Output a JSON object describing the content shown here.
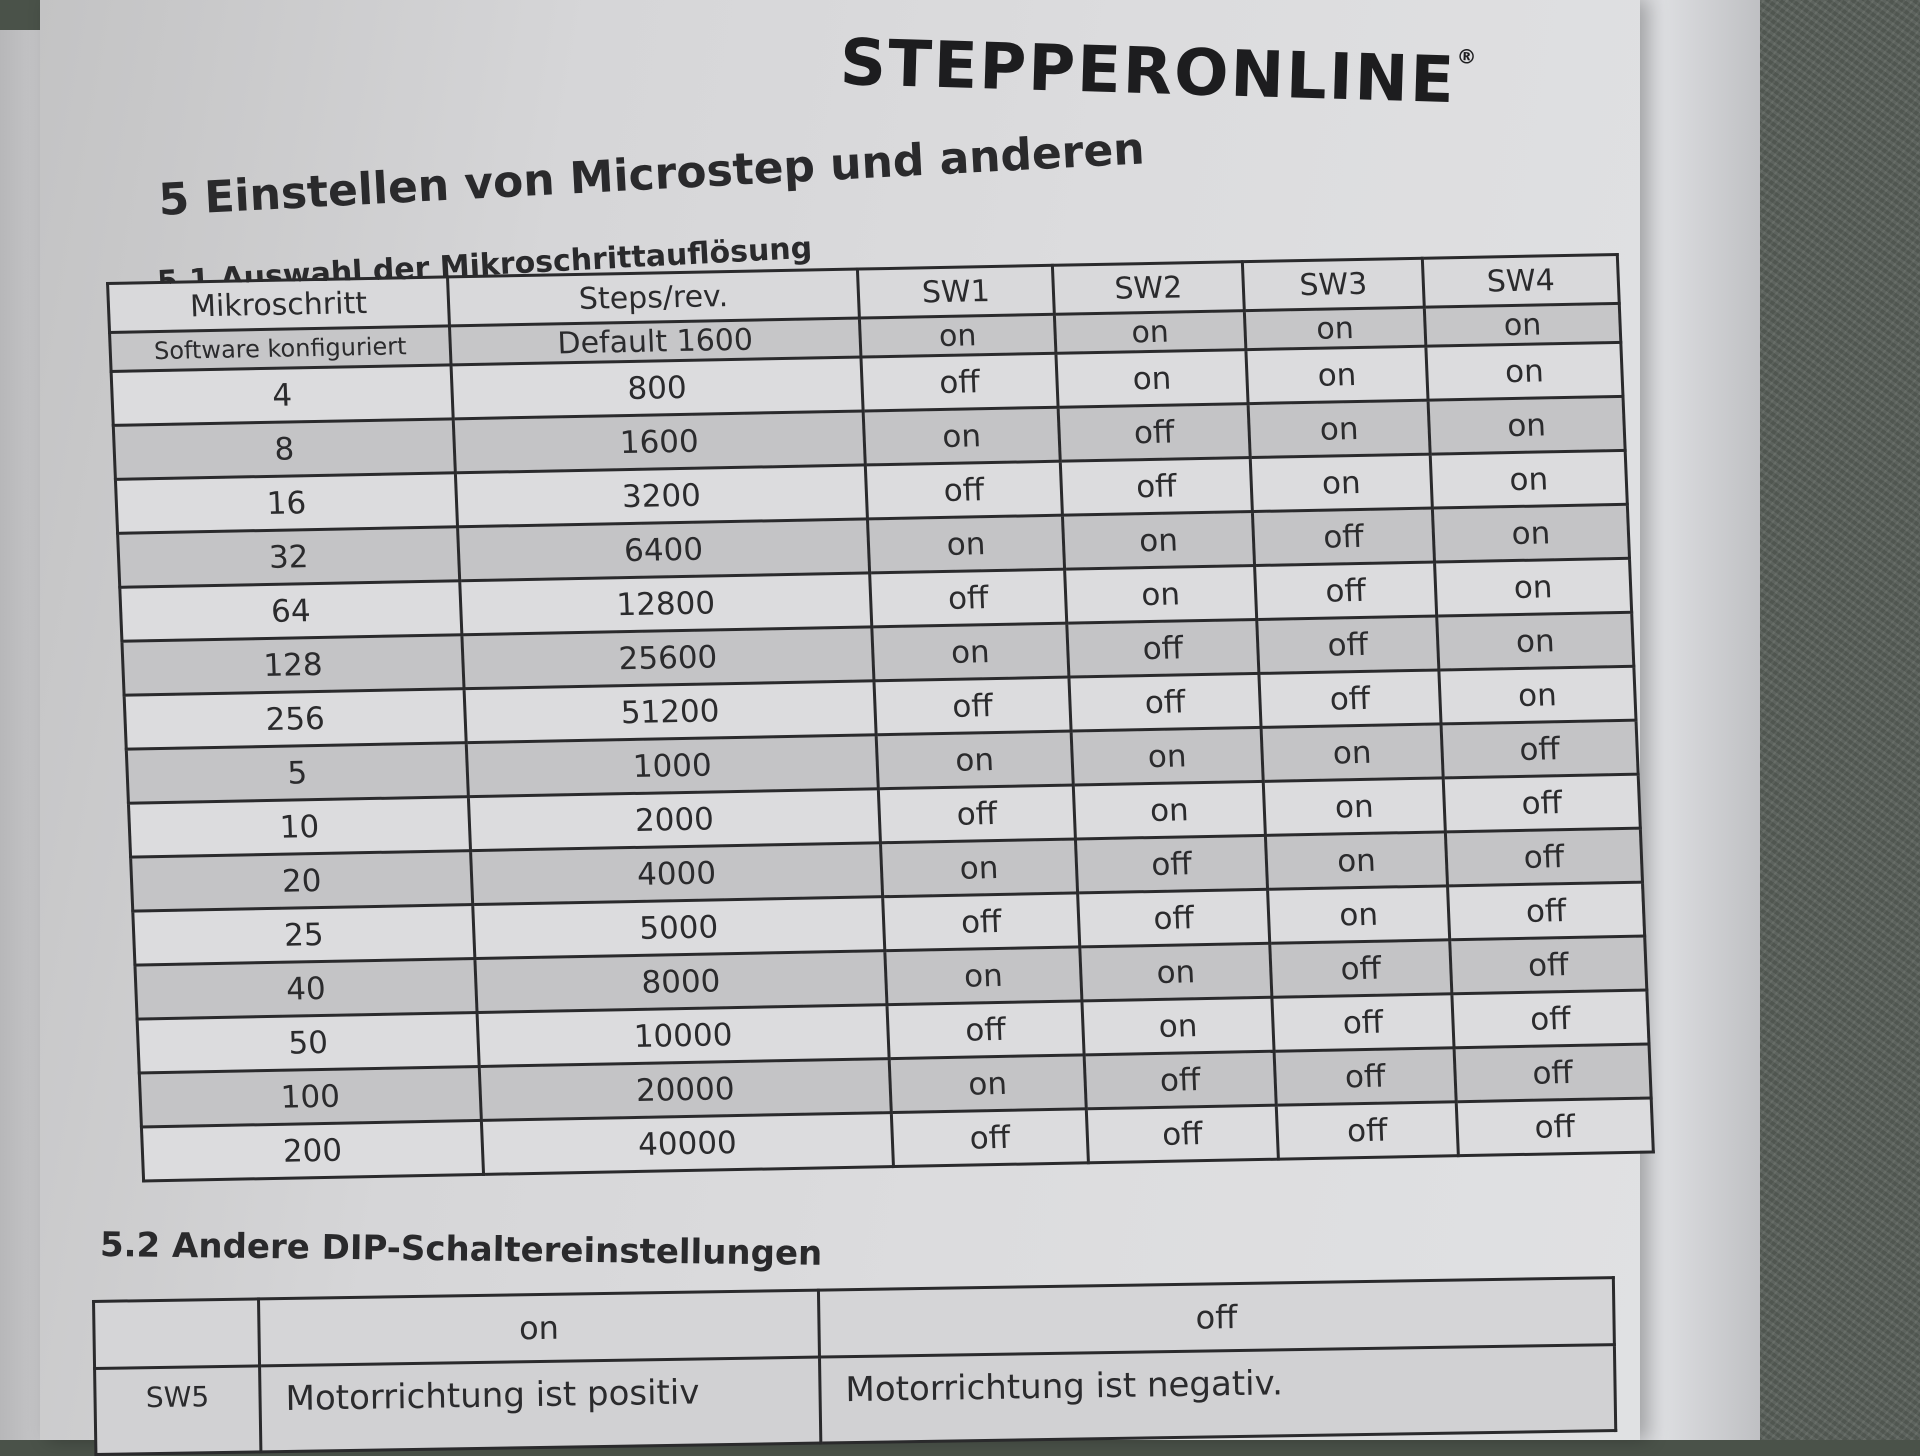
{
  "brand": {
    "logo_text": "STEPPERONLINE",
    "reg_mark": "®"
  },
  "section_title": "5 Einstellen von Microstep und anderen",
  "subsection_1": "5.1 Auswahl der Mikroschrittauflösung",
  "table1": {
    "headers": [
      "Mikroschritt",
      "Steps/rev.",
      "SW1",
      "SW2",
      "SW3",
      "SW4"
    ],
    "subheader": [
      "Software konfiguriert",
      "Default 1600",
      "on",
      "on",
      "on",
      "on"
    ],
    "rows": [
      [
        "4",
        "800",
        "off",
        "on",
        "on",
        "on"
      ],
      [
        "8",
        "1600",
        "on",
        "off",
        "on",
        "on"
      ],
      [
        "16",
        "3200",
        "off",
        "off",
        "on",
        "on"
      ],
      [
        "32",
        "6400",
        "on",
        "on",
        "off",
        "on"
      ],
      [
        "64",
        "12800",
        "off",
        "on",
        "off",
        "on"
      ],
      [
        "128",
        "25600",
        "on",
        "off",
        "off",
        "on"
      ],
      [
        "256",
        "51200",
        "off",
        "off",
        "off",
        "on"
      ],
      [
        "5",
        "1000",
        "on",
        "on",
        "on",
        "off"
      ],
      [
        "10",
        "2000",
        "off",
        "on",
        "on",
        "off"
      ],
      [
        "20",
        "4000",
        "on",
        "off",
        "on",
        "off"
      ],
      [
        "25",
        "5000",
        "off",
        "off",
        "on",
        "off"
      ],
      [
        "40",
        "8000",
        "on",
        "on",
        "off",
        "off"
      ],
      [
        "50",
        "10000",
        "off",
        "on",
        "off",
        "off"
      ],
      [
        "100",
        "20000",
        "on",
        "off",
        "off",
        "off"
      ],
      [
        "200",
        "40000",
        "off",
        "off",
        "off",
        "off"
      ]
    ]
  },
  "subsection_2": "5.2 Andere DIP-Schaltereinstellungen",
  "table2": {
    "headers": [
      "",
      "on",
      "off"
    ],
    "rows": [
      [
        "SW5",
        "Motorrichtung ist positiv",
        "Motorrichtung ist negativ."
      ]
    ]
  }
}
